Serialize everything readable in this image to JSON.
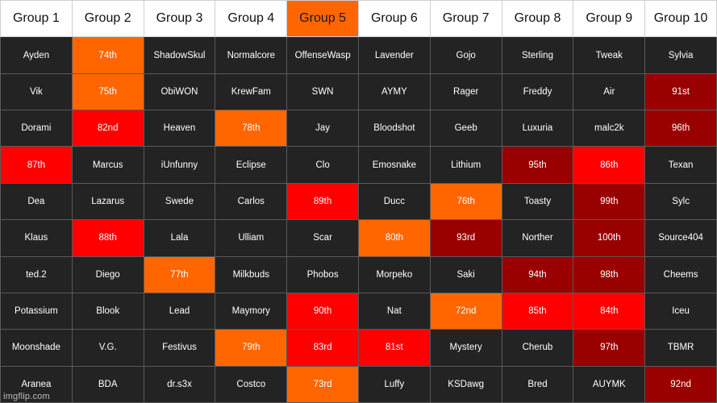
{
  "colors": {
    "dark": "#232323",
    "orange": "#ff6600",
    "red": "#ff0000",
    "maroon": "#990000",
    "header": "#ffffff"
  },
  "headers": [
    {
      "label": "Group 1",
      "color": "white"
    },
    {
      "label": "Group 2",
      "color": "white"
    },
    {
      "label": "Group 3",
      "color": "white"
    },
    {
      "label": "Group 4",
      "color": "white"
    },
    {
      "label": "Group 5",
      "color": "orange"
    },
    {
      "label": "Group 6",
      "color": "white"
    },
    {
      "label": "Group 7",
      "color": "white"
    },
    {
      "label": "Group 8",
      "color": "white"
    },
    {
      "label": "Group 9",
      "color": "white"
    },
    {
      "label": "Group 10",
      "color": "white"
    }
  ],
  "rows": [
    [
      {
        "text": "Ayden",
        "color": "dark"
      },
      {
        "text": "74th",
        "color": "orange"
      },
      {
        "text": "ShadowSkul",
        "color": "dark"
      },
      {
        "text": "Normalcore",
        "color": "dark"
      },
      {
        "text": "OffenseWasp",
        "color": "dark"
      },
      {
        "text": "Lavender",
        "color": "dark"
      },
      {
        "text": "Gojo",
        "color": "dark"
      },
      {
        "text": "Sterling",
        "color": "dark"
      },
      {
        "text": "Tweak",
        "color": "dark"
      },
      {
        "text": "Sylvia",
        "color": "dark"
      }
    ],
    [
      {
        "text": "Vik",
        "color": "dark"
      },
      {
        "text": "75th",
        "color": "orange"
      },
      {
        "text": "ObiWON",
        "color": "dark"
      },
      {
        "text": "KrewFam",
        "color": "dark"
      },
      {
        "text": "SWN",
        "color": "dark"
      },
      {
        "text": "AYMY",
        "color": "dark"
      },
      {
        "text": "Rager",
        "color": "dark"
      },
      {
        "text": "Freddy",
        "color": "dark"
      },
      {
        "text": "Air",
        "color": "dark"
      },
      {
        "text": "91st",
        "color": "maroon"
      }
    ],
    [
      {
        "text": "Dorami",
        "color": "dark"
      },
      {
        "text": "82nd",
        "color": "red"
      },
      {
        "text": "Heaven",
        "color": "dark"
      },
      {
        "text": "78th",
        "color": "orange"
      },
      {
        "text": "Jay",
        "color": "dark"
      },
      {
        "text": "Bloodshot",
        "color": "dark"
      },
      {
        "text": "Geeb",
        "color": "dark"
      },
      {
        "text": "Luxuria",
        "color": "dark"
      },
      {
        "text": "malc2k",
        "color": "dark"
      },
      {
        "text": "96th",
        "color": "maroon"
      }
    ],
    [
      {
        "text": "87th",
        "color": "red"
      },
      {
        "text": "Marcus",
        "color": "dark"
      },
      {
        "text": "iUnfunny",
        "color": "dark"
      },
      {
        "text": "Eclipse",
        "color": "dark"
      },
      {
        "text": "Clo",
        "color": "dark"
      },
      {
        "text": "Emosnake",
        "color": "dark"
      },
      {
        "text": "Lithium",
        "color": "dark"
      },
      {
        "text": "95th",
        "color": "maroon"
      },
      {
        "text": "86th",
        "color": "red"
      },
      {
        "text": "Texan",
        "color": "dark"
      }
    ],
    [
      {
        "text": "Dea",
        "color": "dark"
      },
      {
        "text": "Lazarus",
        "color": "dark"
      },
      {
        "text": "Swede",
        "color": "dark"
      },
      {
        "text": "Carlos",
        "color": "dark"
      },
      {
        "text": "89th",
        "color": "red"
      },
      {
        "text": "Ducc",
        "color": "dark"
      },
      {
        "text": "76th",
        "color": "orange"
      },
      {
        "text": "Toasty",
        "color": "dark"
      },
      {
        "text": "99th",
        "color": "maroon"
      },
      {
        "text": "Sylc",
        "color": "dark"
      }
    ],
    [
      {
        "text": "Klaus",
        "color": "dark"
      },
      {
        "text": "88th",
        "color": "red"
      },
      {
        "text": "Lala",
        "color": "dark"
      },
      {
        "text": "Ulliam",
        "color": "dark"
      },
      {
        "text": "Scar",
        "color": "dark"
      },
      {
        "text": "80th",
        "color": "orange"
      },
      {
        "text": "93rd",
        "color": "maroon"
      },
      {
        "text": "Norther",
        "color": "dark"
      },
      {
        "text": "100th",
        "color": "maroon"
      },
      {
        "text": "Source404",
        "color": "dark"
      }
    ],
    [
      {
        "text": "ted.2",
        "color": "dark"
      },
      {
        "text": "Diego",
        "color": "dark"
      },
      {
        "text": "77th",
        "color": "orange"
      },
      {
        "text": "Milkbuds",
        "color": "dark"
      },
      {
        "text": "Phobos",
        "color": "dark"
      },
      {
        "text": "Morpeko",
        "color": "dark"
      },
      {
        "text": "Saki",
        "color": "dark"
      },
      {
        "text": "94th",
        "color": "maroon"
      },
      {
        "text": "98th",
        "color": "maroon"
      },
      {
        "text": "Cheems",
        "color": "dark"
      }
    ],
    [
      {
        "text": "Potassium",
        "color": "dark"
      },
      {
        "text": "Blook",
        "color": "dark"
      },
      {
        "text": "Lead",
        "color": "dark"
      },
      {
        "text": "Maymory",
        "color": "dark"
      },
      {
        "text": "90th",
        "color": "red"
      },
      {
        "text": "Nat",
        "color": "dark"
      },
      {
        "text": "72nd",
        "color": "orange"
      },
      {
        "text": "85th",
        "color": "red"
      },
      {
        "text": "84th",
        "color": "red"
      },
      {
        "text": "Iceu",
        "color": "dark"
      }
    ],
    [
      {
        "text": "Moonshade",
        "color": "dark"
      },
      {
        "text": "V.G.",
        "color": "dark"
      },
      {
        "text": "Festivus",
        "color": "dark"
      },
      {
        "text": "79th",
        "color": "orange"
      },
      {
        "text": "83rd",
        "color": "red"
      },
      {
        "text": "81st",
        "color": "red"
      },
      {
        "text": "Mystery",
        "color": "dark"
      },
      {
        "text": "Cherub",
        "color": "dark"
      },
      {
        "text": "97th",
        "color": "maroon"
      },
      {
        "text": "TBMR",
        "color": "dark"
      }
    ],
    [
      {
        "text": "Aranea",
        "color": "dark"
      },
      {
        "text": "BDA",
        "color": "dark"
      },
      {
        "text": "dr.s3x",
        "color": "dark"
      },
      {
        "text": "Costco",
        "color": "dark"
      },
      {
        "text": "73rd",
        "color": "orange"
      },
      {
        "text": "Luffy",
        "color": "dark"
      },
      {
        "text": "KSDawg",
        "color": "dark"
      },
      {
        "text": "Bred",
        "color": "dark"
      },
      {
        "text": "AUYMK",
        "color": "dark"
      },
      {
        "text": "92nd",
        "color": "maroon"
      }
    ]
  ],
  "watermark": "imgflip.com"
}
